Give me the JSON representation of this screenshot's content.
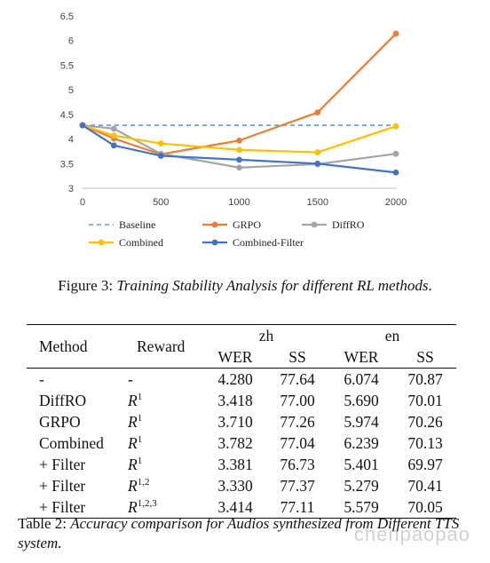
{
  "chart_data": {
    "type": "line",
    "x": [
      0,
      200,
      500,
      1000,
      1500,
      2000
    ],
    "x_ticks": [
      "0",
      "500",
      "1000",
      "1500",
      "2000"
    ],
    "xlim": [
      0,
      2000
    ],
    "ylim": [
      3,
      6.5
    ],
    "y_ticks": [
      "3",
      "3.5",
      "4",
      "4.5",
      "5",
      "5.5",
      "6",
      "6.5"
    ],
    "grid": false,
    "legend_position": "bottom",
    "series": [
      {
        "name": "Baseline",
        "color": "#5b9bd5",
        "style": "dashed",
        "marker": false,
        "values": [
          4.28,
          4.28,
          4.28,
          4.28,
          4.28,
          4.28
        ]
      },
      {
        "name": "GRPO",
        "color": "#ed7d31",
        "style": "solid",
        "marker": true,
        "values": [
          4.28,
          4.01,
          3.69,
          3.97,
          4.54,
          6.14
        ]
      },
      {
        "name": "DiffRO",
        "color": "#a5a5a5",
        "style": "solid",
        "marker": true,
        "values": [
          4.28,
          4.21,
          3.7,
          3.42,
          3.49,
          3.7
        ]
      },
      {
        "name": "Combined",
        "color": "#ffc000",
        "style": "solid",
        "marker": true,
        "values": [
          4.28,
          4.07,
          3.91,
          3.78,
          3.73,
          4.26
        ]
      },
      {
        "name": "Combined-Filter",
        "color": "#4472c4",
        "style": "solid",
        "marker": true,
        "values": [
          4.28,
          3.87,
          3.66,
          3.58,
          3.5,
          3.32
        ]
      }
    ]
  },
  "figure_caption": {
    "label": "Figure 3:",
    "text": "Training Stability Analysis for different RL methods",
    "end": "."
  },
  "table": {
    "headers": {
      "method": "Method",
      "reward": "Reward",
      "zh": "zh",
      "en": "en",
      "wer": "WER",
      "ss": "SS"
    },
    "rows": [
      {
        "method": "-",
        "reward_base": "-",
        "reward_sup": "",
        "zh_wer": "4.280",
        "zh_ss": "77.64",
        "en_wer": "6.074",
        "en_ss": "70.87"
      },
      {
        "method": "DiffRO",
        "reward_base": "R",
        "reward_sup": "1",
        "zh_wer": "3.418",
        "zh_ss": "77.00",
        "en_wer": "5.690",
        "en_ss": "70.01"
      },
      {
        "method": "GRPO",
        "reward_base": "R",
        "reward_sup": "1",
        "zh_wer": "3.710",
        "zh_ss": "77.26",
        "en_wer": "5.974",
        "en_ss": "70.26"
      },
      {
        "method": "Combined",
        "reward_base": "R",
        "reward_sup": "1",
        "zh_wer": "3.782",
        "zh_ss": "77.04",
        "en_wer": "6.239",
        "en_ss": "70.13"
      },
      {
        "method": "+ Filter",
        "reward_base": "R",
        "reward_sup": "1",
        "zh_wer": "3.381",
        "zh_ss": "76.73",
        "en_wer": "5.401",
        "en_ss": "69.97"
      },
      {
        "method": "+ Filter",
        "reward_base": "R",
        "reward_sup": "1,2",
        "zh_wer": "3.330",
        "zh_ss": "77.37",
        "en_wer": "5.279",
        "en_ss": "70.41"
      },
      {
        "method": "+ Filter",
        "reward_base": "R",
        "reward_sup": "1,2,3",
        "zh_wer": "3.414",
        "zh_ss": "77.11",
        "en_wer": "5.579",
        "en_ss": "70.05"
      }
    ]
  },
  "table_caption": {
    "label": "Table 2:",
    "text": "Accuracy comparison for Audios synthesized from Different TTS system."
  },
  "watermark": "chenpaopao"
}
